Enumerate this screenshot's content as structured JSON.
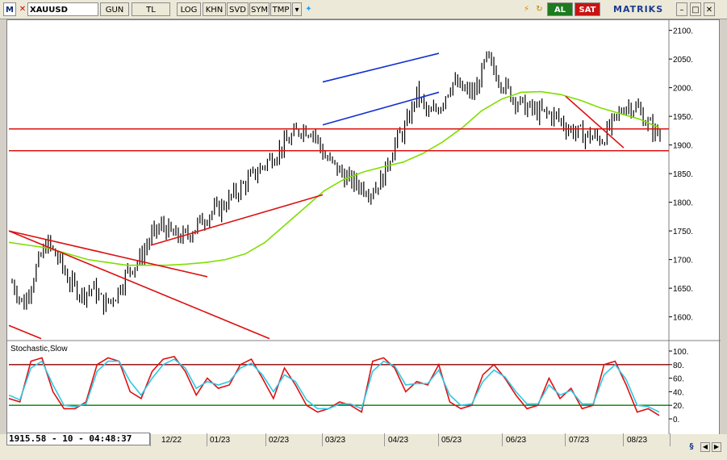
{
  "toolbar": {
    "logo": "M",
    "symbol": "XAUUSD",
    "buttons": [
      "GUN",
      "TL",
      "LOG",
      "KHN",
      "SVD",
      "SYM",
      "TMP"
    ],
    "buy_label": "AL",
    "sell_label": "SAT",
    "brand": "MATRIKS",
    "dropdown_icon": "dropdown-icon",
    "twitter_icon": "twitter-icon",
    "colors": {
      "buy": "#1e7a1e",
      "sell": "#c81414",
      "brand": "#1b3b8f"
    }
  },
  "status": "1915.58 - 10 - 04:48:37",
  "chart_data": [
    {
      "type": "candlestick",
      "title": "",
      "ylim": [
        1560,
        2115
      ],
      "yticks": [
        1600,
        1650,
        1700,
        1750,
        1800,
        1850,
        1900,
        1950,
        2000,
        2050,
        2100
      ],
      "ytick_labels": [
        "1600.",
        "1650.",
        "1700.",
        "1750.",
        "1800.",
        "1850.",
        "1900.",
        "1950.",
        "2000.",
        "2050.",
        "2100."
      ],
      "xtick_labels": [
        "12/22",
        "01/23",
        "02/23",
        "03/23",
        "04/23",
        "05/23",
        "06/23",
        "07/23",
        "08/23"
      ],
      "price_path": [
        1660,
        1620,
        1680,
        1730,
        1700,
        1660,
        1640,
        1650,
        1620,
        1640,
        1680,
        1700,
        1740,
        1760,
        1740,
        1740,
        1760,
        1780,
        1790,
        1810,
        1830,
        1850,
        1870,
        1890,
        1910,
        1930,
        1925,
        1880,
        1860,
        1840,
        1830,
        1820,
        1840,
        1900,
        1930,
        1990,
        1950,
        1970,
        2010,
        1995,
        1990,
        2050,
        2020,
        1990,
        1970,
        1960,
        1955,
        1950,
        1930,
        1920,
        1915,
        1910,
        1940,
        1970,
        1965,
        1935,
        1915
      ],
      "series": [
        {
          "name": "moving average",
          "color": "#7fdf00",
          "values": [
            1730,
            1725,
            1720,
            1710,
            1700,
            1695,
            1690,
            1690,
            1690,
            1692,
            1695,
            1700,
            1710,
            1730,
            1760,
            1790,
            1820,
            1840,
            1853,
            1862,
            1870,
            1885,
            1905,
            1930,
            1960,
            1980,
            1992,
            1993,
            1988,
            1978,
            1965,
            1955,
            1945,
            1930
          ]
        },
        {
          "name": "resistance/support lines",
          "color": "#dd1010",
          "levels": [
            1928,
            1890
          ]
        }
      ],
      "trendlines": [
        {
          "color": "#dd1010",
          "from": [
            "start",
            1750
          ],
          "to": [
            "01/23",
            1670
          ]
        },
        {
          "color": "#dd1010",
          "from": [
            "12/22",
            1725
          ],
          "to": [
            "03/23",
            1813
          ]
        },
        {
          "color": "#1030d0",
          "from": [
            "03/23",
            2010
          ],
          "to": [
            "05/23",
            2060
          ]
        },
        {
          "color": "#1030d0",
          "from": [
            "03/23",
            1935
          ],
          "to": [
            "05/23",
            1992
          ]
        },
        {
          "color": "#dd1010",
          "from": [
            "07/23",
            1985
          ],
          "to": [
            "08/23",
            1895
          ]
        }
      ]
    },
    {
      "type": "line",
      "title": "Stochastic,Slow",
      "ylim": [
        0,
        100
      ],
      "yticks": [
        0,
        20,
        40,
        60,
        80,
        100
      ],
      "ytick_labels": [
        "0.",
        "20.",
        "40.",
        "60.",
        "80.",
        "100."
      ],
      "levels": [
        {
          "value": 80,
          "color": "#8b0000"
        },
        {
          "value": 20,
          "color": "#008000"
        }
      ],
      "series": [
        {
          "name": "%K",
          "color": "#e01010",
          "values": [
            30,
            25,
            85,
            90,
            40,
            15,
            15,
            25,
            80,
            90,
            85,
            40,
            30,
            70,
            88,
            92,
            70,
            35,
            60,
            45,
            50,
            80,
            88,
            60,
            30,
            75,
            50,
            20,
            10,
            15,
            25,
            20,
            10,
            85,
            90,
            75,
            40,
            55,
            50,
            80,
            25,
            15,
            20,
            65,
            80,
            60,
            35,
            15,
            20,
            60,
            30,
            45,
            15,
            20,
            80,
            85,
            50,
            10,
            15,
            5
          ]
        },
        {
          "name": "%D",
          "color": "#2ec8e6",
          "values": [
            35,
            28,
            75,
            85,
            50,
            20,
            18,
            22,
            70,
            85,
            85,
            55,
            35,
            60,
            80,
            88,
            75,
            45,
            55,
            50,
            55,
            75,
            82,
            65,
            40,
            65,
            55,
            28,
            15,
            15,
            22,
            22,
            15,
            70,
            85,
            78,
            50,
            52,
            52,
            72,
            35,
            20,
            22,
            55,
            72,
            62,
            40,
            22,
            22,
            50,
            35,
            42,
            22,
            22,
            65,
            80,
            58,
            20,
            18,
            10
          ]
        }
      ]
    }
  ]
}
